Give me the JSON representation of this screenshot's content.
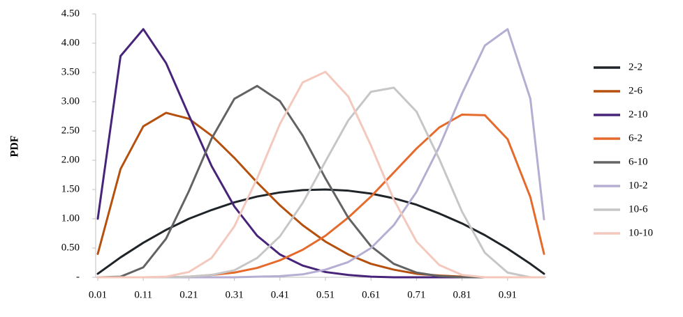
{
  "chart_data": {
    "type": "line",
    "y_label": "PDF",
    "x": [
      0.01,
      0.06,
      0.11,
      0.16,
      0.21,
      0.26,
      0.31,
      0.36,
      0.41,
      0.46,
      0.51,
      0.56,
      0.61,
      0.66,
      0.71,
      0.76,
      0.81,
      0.86,
      0.91,
      0.96,
      0.99
    ],
    "xlim": [
      0.01,
      0.99
    ],
    "xticks": [
      0.01,
      0.11,
      0.21,
      0.31,
      0.41,
      0.51,
      0.61,
      0.71,
      0.81,
      0.91
    ],
    "ylim": [
      0,
      4.5
    ],
    "yticks": [
      {
        "value": 0,
        "label": "-"
      },
      {
        "value": 0.5,
        "label": "0.50"
      },
      {
        "value": 1,
        "label": "1.00"
      },
      {
        "value": 1.5,
        "label": "1.50"
      },
      {
        "value": 2,
        "label": "2.00"
      },
      {
        "value": 2.5,
        "label": "2.50"
      },
      {
        "value": 3,
        "label": "3.00"
      },
      {
        "value": 3.5,
        "label": "3.50"
      },
      {
        "value": 4,
        "label": "4.00"
      },
      {
        "value": 4.5,
        "label": "4.50"
      }
    ],
    "grid": false,
    "legend": "right",
    "series": [
      {
        "name": "2-2",
        "color": "#1f2428",
        "values": [
          0.06,
          0.34,
          0.59,
          0.81,
          1.0,
          1.15,
          1.28,
          1.38,
          1.45,
          1.49,
          1.5,
          1.48,
          1.43,
          1.35,
          1.24,
          1.09,
          0.92,
          0.72,
          0.49,
          0.23,
          0.06
        ]
      },
      {
        "name": "2-6",
        "color": "#b5500f",
        "values": [
          0.4,
          1.85,
          2.58,
          2.81,
          2.71,
          2.42,
          2.04,
          1.62,
          1.23,
          0.89,
          0.61,
          0.39,
          0.23,
          0.13,
          0.06,
          0.03,
          0.01,
          0,
          0,
          0,
          0
        ]
      },
      {
        "name": "2-10",
        "color": "#47237a",
        "values": [
          1.0,
          3.78,
          4.24,
          3.66,
          2.77,
          1.9,
          1.21,
          0.71,
          0.39,
          0.2,
          0.09,
          0.04,
          0.01,
          0,
          0,
          0,
          0,
          0,
          0,
          0,
          0
        ]
      },
      {
        "name": "6-2",
        "color": "#e56a2c",
        "values": [
          0,
          0,
          0,
          0,
          0.01,
          0.04,
          0.08,
          0.16,
          0.29,
          0.47,
          0.71,
          1.02,
          1.38,
          1.79,
          2.2,
          2.56,
          2.78,
          2.77,
          2.36,
          1.37,
          0.4
        ]
      },
      {
        "name": "6-10",
        "color": "#636363",
        "values": [
          0,
          0.01,
          0.17,
          0.66,
          1.47,
          2.37,
          3.05,
          3.27,
          3.01,
          2.42,
          1.69,
          1.02,
          0.53,
          0.23,
          0.08,
          0.02,
          0,
          0,
          0,
          0,
          0
        ]
      },
      {
        "name": "10-2",
        "color": "#b5aed2",
        "values": [
          0,
          0,
          0,
          0,
          0,
          0,
          0,
          0.01,
          0.02,
          0.05,
          0.13,
          0.26,
          0.5,
          0.89,
          1.46,
          2.23,
          3.14,
          3.96,
          4.24,
          3.05,
          0.99
        ]
      },
      {
        "name": "10-6",
        "color": "#c6c6c6",
        "values": [
          0,
          0,
          0,
          0,
          0.01,
          0.04,
          0.12,
          0.33,
          0.7,
          1.27,
          1.98,
          2.68,
          3.17,
          3.24,
          2.83,
          2.02,
          1.12,
          0.42,
          0.08,
          0,
          0
        ]
      },
      {
        "name": "10-10",
        "color": "#f4c8bd",
        "values": [
          0,
          0,
          0,
          0.01,
          0.09,
          0.33,
          0.87,
          1.69,
          2.62,
          3.33,
          3.51,
          3.09,
          2.25,
          1.33,
          0.61,
          0.21,
          0.04,
          0,
          0,
          0,
          0
        ]
      }
    ]
  }
}
